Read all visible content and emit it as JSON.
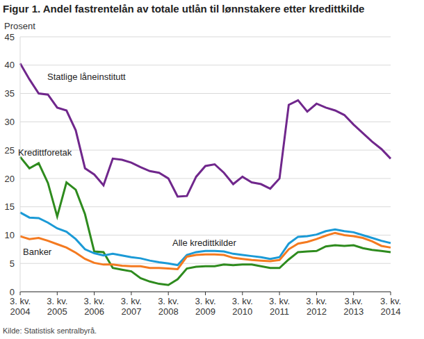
{
  "chart_data": {
    "type": "line",
    "title": "Figur 1. Andel fastrentelån av totale utlån til lønnstakere etter kredittkilde",
    "y_label": "Prosent",
    "source": "Kilde: Statistisk sentralbyrå.",
    "categories": [
      "3. kv. 2004",
      null,
      null,
      null,
      "3. kv. 2005",
      null,
      null,
      null,
      "3. kv. 2006",
      null,
      null,
      null,
      "3. kv. 2007",
      null,
      null,
      null,
      "3. kv. 2008",
      null,
      null,
      null,
      "3. kv. 2009",
      null,
      null,
      null,
      "3. kv. 2010",
      null,
      null,
      null,
      "3. kv. 2011",
      null,
      null,
      null,
      "3. kv. 2012",
      null,
      null,
      null,
      "3.kv. 2013",
      null,
      null,
      null,
      "3. kv. 2014"
    ],
    "series": [
      {
        "name": "Statlige låneinstitutt",
        "color": "#70278c",
        "values": [
          40.3,
          37.5,
          35.0,
          34.8,
          32.5,
          32.0,
          28.5,
          21.8,
          20.7,
          18.8,
          23.5,
          23.3,
          22.8,
          22.0,
          21.3,
          21.0,
          20.0,
          16.8,
          16.9,
          20.3,
          22.2,
          22.5,
          21.0,
          19.0,
          20.3,
          19.3,
          19.0,
          18.2,
          20.0,
          33.0,
          33.8,
          31.8,
          33.2,
          32.5,
          32.0,
          31.2,
          29.5,
          28.0,
          26.5,
          25.2,
          23.5
        ]
      },
      {
        "name": "Kredittforetak",
        "color": "#2e8b1e",
        "values": [
          23.8,
          21.8,
          22.7,
          19.2,
          13.3,
          19.3,
          18.0,
          13.7,
          7.1,
          7.0,
          4.2,
          3.9,
          3.6,
          2.4,
          1.8,
          1.4,
          1.2,
          2.2,
          4.1,
          4.4,
          4.5,
          4.5,
          4.8,
          4.7,
          4.8,
          4.8,
          4.5,
          4.2,
          4.2,
          5.7,
          7.0,
          7.1,
          7.2,
          8.0,
          8.2,
          8.1,
          8.2,
          7.7,
          7.4,
          7.2,
          7.0
        ]
      },
      {
        "name": "Alle kredittkilder",
        "color": "#1b9ad6",
        "values": [
          14.0,
          13.1,
          13.0,
          12.2,
          11.2,
          10.6,
          9.3,
          7.5,
          6.8,
          6.4,
          6.7,
          6.4,
          6.1,
          5.9,
          5.5,
          5.2,
          5.0,
          4.7,
          6.5,
          7.0,
          7.2,
          7.2,
          7.1,
          6.7,
          6.5,
          6.3,
          6.1,
          5.8,
          6.1,
          8.5,
          9.7,
          9.8,
          10.1,
          10.7,
          11.0,
          10.7,
          10.5,
          10.0,
          9.5,
          9.0,
          8.6
        ]
      },
      {
        "name": "Banker",
        "color": "#f47a20",
        "values": [
          9.8,
          9.3,
          9.5,
          9.0,
          8.4,
          7.8,
          6.9,
          5.8,
          5.1,
          4.8,
          4.8,
          4.6,
          4.5,
          4.5,
          4.2,
          4.2,
          4.1,
          4.0,
          6.2,
          6.5,
          6.6,
          6.6,
          6.5,
          6.0,
          5.8,
          5.6,
          5.5,
          5.4,
          5.6,
          7.5,
          8.5,
          8.8,
          9.3,
          9.9,
          10.4,
          10.0,
          9.8,
          9.5,
          8.9,
          8.1,
          7.8
        ]
      }
    ],
    "ylim": [
      0,
      45
    ],
    "yticks": [
      0,
      5,
      10,
      15,
      20,
      25,
      30,
      35,
      40,
      45
    ],
    "grid": true
  }
}
